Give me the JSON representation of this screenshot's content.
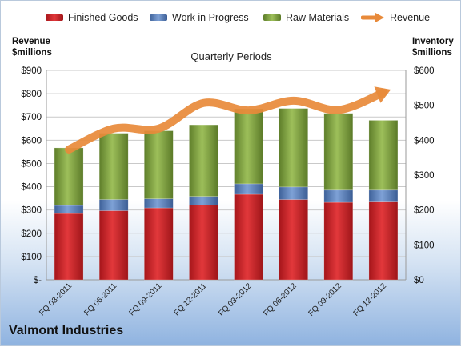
{
  "company": "Valmont Industries",
  "subtitle": "Quarterly Periods",
  "left_axis_title": [
    "Revenue",
    "$millions"
  ],
  "right_axis_title": [
    "Inventory",
    "$millions"
  ],
  "legend": [
    {
      "label": "Finished Goods",
      "color": "#d7262a",
      "kind": "bar"
    },
    {
      "label": "Work in Progress",
      "color": "#5f86c3",
      "kind": "bar"
    },
    {
      "label": "Raw Materials",
      "color": "#8db04a",
      "kind": "bar"
    },
    {
      "label": "Revenue",
      "color": "#e88a3a",
      "kind": "line"
    }
  ],
  "chart_data": {
    "type": "bar",
    "stacked": true,
    "categories": [
      "FQ 03-2011",
      "FQ 06-2011",
      "FQ 09-2011",
      "FQ 12-2011",
      "FQ 03-2012",
      "FQ 06-2012",
      "FQ 09-2012",
      "FQ 12-2012"
    ],
    "series": [
      {
        "name": "Finished Goods",
        "axis": "right",
        "color": "#d7262a",
        "values": [
          190,
          198,
          206,
          214,
          245,
          230,
          222,
          223
        ]
      },
      {
        "name": "Work in Progress",
        "axis": "right",
        "color": "#5f86c3",
        "values": [
          23,
          32,
          26,
          25,
          30,
          36,
          35,
          34
        ]
      },
      {
        "name": "Raw Materials",
        "axis": "right",
        "color": "#8db04a",
        "values": [
          165,
          190,
          195,
          205,
          215,
          225,
          220,
          200
        ]
      },
      {
        "name": "Revenue",
        "axis": "left",
        "type": "line",
        "color": "#e88a3a",
        "values": [
          560,
          650,
          650,
          760,
          728,
          770,
          730,
          805
        ]
      }
    ],
    "y_left": {
      "min": 0,
      "max": 900,
      "step": 100,
      "tick_labels": [
        "$-",
        "$100",
        "$200",
        "$300",
        "$400",
        "$500",
        "$600",
        "$700",
        "$800",
        "$900"
      ]
    },
    "y_right": {
      "min": 0,
      "max": 600,
      "step": 100,
      "tick_labels": [
        "$0",
        "$100",
        "$200",
        "$300",
        "$400",
        "$500",
        "$600"
      ]
    },
    "grid": true,
    "legend_position": "top"
  }
}
